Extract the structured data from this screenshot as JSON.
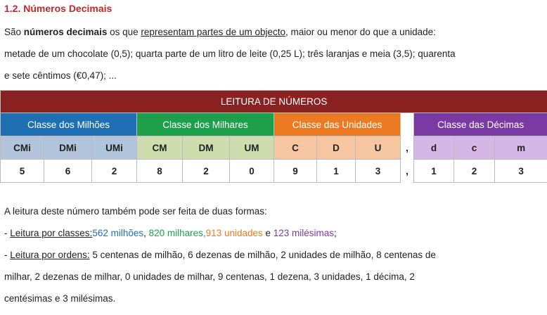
{
  "heading": "1.2. Números Decimais",
  "intro": {
    "p1": "São ",
    "bold": "números decimais",
    "p2": " os que ",
    "underline": "representam partes de um objecto",
    "p3": ", maior ou menor do que a unidade:",
    "line2": "metade de um chocolate (0,5); quarta parte de um litro de leite (0,25 L); três laranjas e meia (3,5); quarenta",
    "line3": "e sete cêntimos (€0,47); ..."
  },
  "table": {
    "title": "LEITURA DE NÚMEROS",
    "classes": [
      "Classe dos Milhões",
      "Classe dos Milhares",
      "Classe das Unidades",
      "Classe das Décimas"
    ],
    "headers": [
      "CMi",
      "DMi",
      "UMi",
      "CM",
      "DM",
      "UM",
      "C",
      "D",
      "U",
      ",",
      "d",
      "c",
      "m"
    ],
    "values": [
      "5",
      "6",
      "2",
      "8",
      "2",
      "0",
      "9",
      "1",
      "3",
      ",",
      "1",
      "2",
      "3"
    ]
  },
  "colors": {
    "blue": "#1f6fb5",
    "green": "#1ea04a",
    "orange": "#ec7a22",
    "purple": "#7b3aa3",
    "title": "#8b2222",
    "heading": "#c0282b"
  },
  "reading": {
    "intro": "A leitura deste número também pode ser feita de duas formas:",
    "classes_prefix": "- ",
    "classes_label": "Leitura por classes:",
    "c1": "562 milhões",
    "s1": ", ",
    "c2": "820 milhares,",
    "c3": "913 unidades",
    "s3": " e ",
    "c4": "123 milésimas",
    "s4": ";",
    "orders_prefix": "- ",
    "orders_label": "Leitura por ordens:",
    "orders_l1": " 5 centenas de milhão, 6 dezenas de milhão, 2 unidades de milhão, 8 centenas de",
    "orders_l2": "milhar, 2 dezenas de milhar, 0 unidades de milhar, 9 centenas, 1 dezena, 3 unidades, 1 décima, 2",
    "orders_l3": "centésimas e 3 milésimas."
  }
}
